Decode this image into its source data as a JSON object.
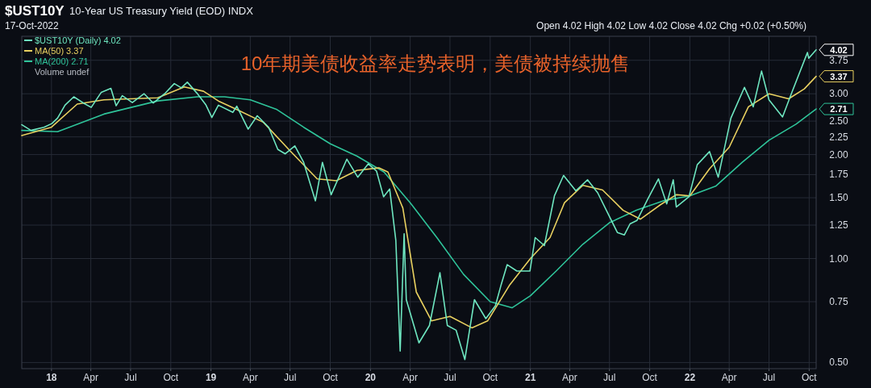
{
  "chart_data": {
    "type": "line",
    "title": "$UST10Y",
    "subtitle": "10-Year US Treasury Yield (EOD) INDX",
    "annotations": [
      "17-Oct-2022",
      "Open 4.02 High 4.02 Low 4.02 Close 4.02 Chg +0.02 (+0.50%)",
      "10年期美债收益率走势表明，美债被持续抛售",
      "Volume undef",
      {
        "text": "4.02",
        "x": "2022-10-17",
        "y": 4.02
      },
      {
        "text": "3.37",
        "x": "2022-10-17",
        "y": 3.37
      },
      {
        "text": "2.71",
        "x": "2022-10-17",
        "y": 2.71
      }
    ],
    "log": true,
    "grid": true,
    "legend": "top left",
    "xlim": [
      "2017-10-25",
      "2022-10-17"
    ],
    "xticks": [
      {
        "value": "2018-01-01",
        "label": "18"
      },
      {
        "value": "2018-04-01",
        "label": "Apr"
      },
      {
        "value": "2018-07-01",
        "label": "Jul"
      },
      {
        "value": "2018-10-01",
        "label": "Oct"
      },
      {
        "value": "2019-01-01",
        "label": "19"
      },
      {
        "value": "2019-04-01",
        "label": "Apr"
      },
      {
        "value": "2019-07-01",
        "label": "Jul"
      },
      {
        "value": "2019-10-01",
        "label": "Oct"
      },
      {
        "value": "2020-01-01",
        "label": "20"
      },
      {
        "value": "2020-04-01",
        "label": "Apr"
      },
      {
        "value": "2020-07-01",
        "label": "Jul"
      },
      {
        "value": "2020-10-01",
        "label": "Oct"
      },
      {
        "value": "2021-01-01",
        "label": "21"
      },
      {
        "value": "2021-04-01",
        "label": "Apr"
      },
      {
        "value": "2021-07-01",
        "label": "Jul"
      },
      {
        "value": "2021-10-01",
        "label": "Oct"
      },
      {
        "value": "2022-01-01",
        "label": "22"
      },
      {
        "value": "2022-04-01",
        "label": "Apr"
      },
      {
        "value": "2022-07-01",
        "label": "Jul"
      },
      {
        "value": "2022-10-01",
        "label": "Oct"
      }
    ],
    "ylim": [
      0.48,
      4.4
    ],
    "yticks": [
      {
        "value": 0.5,
        "label": "0.50"
      },
      {
        "value": 0.75,
        "label": "0.75"
      },
      {
        "value": 1,
        "label": "1.00"
      },
      {
        "value": 1.25,
        "label": "1.25"
      },
      {
        "value": 1.5,
        "label": "1.50"
      },
      {
        "value": 1.75,
        "label": "1.75"
      },
      {
        "value": 2,
        "label": "2.00"
      },
      {
        "value": 2.25,
        "label": "2.25"
      },
      {
        "value": 2.5,
        "label": "2.50"
      },
      {
        "value": 3,
        "label": "3.00"
      },
      {
        "value": 3.75,
        "label": "3.75"
      }
    ],
    "series": [
      {
        "name": "MA(200) 2.71",
        "color": "#2fc49a",
        "x": [
          "2017-10-25",
          "2018-01-15",
          "2018-05-01",
          "2018-09-01",
          "2018-12-01",
          "2019-02-01",
          "2019-04-01",
          "2019-06-01",
          "2019-08-01",
          "2019-10-01",
          "2019-12-01",
          "2020-02-01",
          "2020-04-01",
          "2020-06-01",
          "2020-08-01",
          "2020-10-01",
          "2020-11-20",
          "2021-01-01",
          "2021-03-01",
          "2021-05-01",
          "2021-07-01",
          "2021-09-01",
          "2021-11-01",
          "2022-01-01",
          "2022-03-01",
          "2022-05-01",
          "2022-07-01",
          "2022-09-01",
          "2022-10-17"
        ],
        "values": [
          2.35,
          2.33,
          2.62,
          2.86,
          2.94,
          2.94,
          2.88,
          2.7,
          2.4,
          2.15,
          1.98,
          1.78,
          1.45,
          1.15,
          0.9,
          0.75,
          0.72,
          0.78,
          0.92,
          1.1,
          1.27,
          1.38,
          1.47,
          1.52,
          1.62,
          1.9,
          2.2,
          2.45,
          2.71
        ]
      },
      {
        "name": "MA(50) 3.37",
        "color": "#e8d060",
        "x": [
          "2017-10-25",
          "2018-01-01",
          "2018-03-01",
          "2018-05-01",
          "2018-07-01",
          "2018-09-01",
          "2018-11-01",
          "2018-12-15",
          "2019-01-20",
          "2019-03-01",
          "2019-05-01",
          "2019-07-01",
          "2019-09-01",
          "2019-10-15",
          "2019-12-01",
          "2020-01-20",
          "2020-02-10",
          "2020-03-15",
          "2020-04-15",
          "2020-05-20",
          "2020-07-01",
          "2020-08-20",
          "2020-09-25",
          "2020-11-15",
          "2021-01-01",
          "2021-02-15",
          "2021-03-20",
          "2021-05-01",
          "2021-06-15",
          "2021-08-01",
          "2021-09-10",
          "2021-10-25",
          "2021-12-01",
          "2022-01-01",
          "2022-02-15",
          "2022-04-01",
          "2022-05-15",
          "2022-07-01",
          "2022-08-15",
          "2022-09-20",
          "2022-10-17"
        ],
        "values": [
          2.27,
          2.4,
          2.8,
          2.88,
          2.9,
          2.92,
          3.14,
          3.05,
          2.85,
          2.7,
          2.48,
          2.05,
          1.7,
          1.68,
          1.8,
          1.83,
          1.78,
          1.4,
          0.8,
          0.66,
          0.68,
          0.63,
          0.66,
          0.84,
          1.0,
          1.15,
          1.45,
          1.63,
          1.58,
          1.38,
          1.3,
          1.43,
          1.53,
          1.52,
          1.82,
          2.1,
          2.75,
          3.0,
          2.9,
          3.1,
          3.37
        ]
      },
      {
        "name": "$UST10Y (Daily) 4.02",
        "color": "#6ee6c0",
        "x": [
          "2017-10-25",
          "2017-11-15",
          "2017-12-15",
          "2018-01-02",
          "2018-01-15",
          "2018-02-01",
          "2018-02-21",
          "2018-03-15",
          "2018-04-02",
          "2018-04-25",
          "2018-05-17",
          "2018-05-29",
          "2018-06-12",
          "2018-07-05",
          "2018-08-01",
          "2018-08-22",
          "2018-09-17",
          "2018-10-09",
          "2018-10-25",
          "2018-11-08",
          "2018-11-30",
          "2018-12-20",
          "2019-01-03",
          "2019-01-18",
          "2019-02-20",
          "2019-03-01",
          "2019-03-27",
          "2019-04-17",
          "2019-05-13",
          "2019-06-03",
          "2019-06-20",
          "2019-07-12",
          "2019-08-01",
          "2019-08-28",
          "2019-09-13",
          "2019-10-03",
          "2019-11-08",
          "2019-12-03",
          "2019-12-27",
          "2020-01-15",
          "2020-01-31",
          "2020-02-14",
          "2020-02-28",
          "2020-03-09",
          "2020-03-18",
          "2020-03-23",
          "2020-04-21",
          "2020-05-15",
          "2020-06-08",
          "2020-06-25",
          "2020-07-15",
          "2020-08-04",
          "2020-08-26",
          "2020-09-21",
          "2020-10-13",
          "2020-10-26",
          "2020-11-09",
          "2020-12-01",
          "2020-12-31",
          "2021-01-12",
          "2021-02-02",
          "2021-02-25",
          "2021-03-18",
          "2021-04-15",
          "2021-05-12",
          "2021-06-04",
          "2021-07-19",
          "2021-08-04",
          "2021-08-17",
          "2021-09-02",
          "2021-09-27",
          "2021-10-21",
          "2021-11-09",
          "2021-11-24",
          "2021-12-01",
          "2021-12-30",
          "2022-01-18",
          "2022-02-15",
          "2022-03-07",
          "2022-04-05",
          "2022-05-06",
          "2022-05-26",
          "2022-06-14",
          "2022-07-01",
          "2022-08-01",
          "2022-08-22",
          "2022-09-27",
          "2022-09-30",
          "2022-10-17"
        ],
        "values": [
          2.44,
          2.35,
          2.4,
          2.46,
          2.55,
          2.78,
          2.94,
          2.82,
          2.74,
          3.03,
          3.11,
          2.77,
          2.96,
          2.83,
          3.0,
          2.82,
          3.0,
          3.21,
          3.12,
          3.24,
          3.01,
          2.79,
          2.56,
          2.78,
          2.65,
          2.76,
          2.37,
          2.59,
          2.4,
          2.07,
          2.01,
          2.12,
          1.9,
          1.47,
          1.9,
          1.53,
          1.94,
          1.72,
          1.88,
          1.79,
          1.51,
          1.59,
          1.13,
          0.54,
          1.18,
          0.76,
          0.57,
          0.64,
          0.91,
          0.64,
          0.62,
          0.51,
          0.76,
          0.67,
          0.73,
          0.84,
          0.96,
          0.92,
          0.92,
          1.15,
          1.09,
          1.52,
          1.74,
          1.57,
          1.69,
          1.55,
          1.19,
          1.17,
          1.26,
          1.29,
          1.49,
          1.7,
          1.44,
          1.69,
          1.41,
          1.51,
          1.87,
          2.04,
          1.72,
          2.55,
          3.13,
          2.75,
          3.49,
          2.88,
          2.57,
          3.02,
          3.95,
          3.8,
          4.02
        ]
      }
    ]
  }
}
